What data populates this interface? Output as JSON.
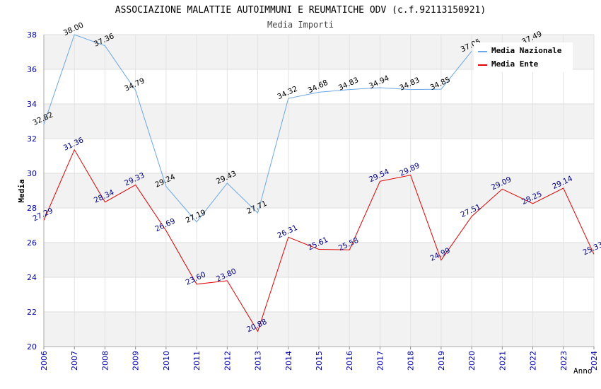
{
  "chart_data": {
    "type": "line",
    "title": "ASSOCIAZIONE MALATTIE AUTOIMMUNI E REUMATICHE ODV (c.f.92113150921)",
    "subtitle": "Media Importi",
    "xlabel": "Anno",
    "ylabel": "Media",
    "ylim": [
      20,
      38
    ],
    "yticks": [
      20,
      22,
      24,
      26,
      28,
      30,
      32,
      34,
      36,
      38
    ],
    "x": [
      2006,
      2007,
      2008,
      2009,
      2010,
      2011,
      2012,
      2013,
      2014,
      2015,
      2016,
      2017,
      2018,
      2019,
      2020,
      2021,
      2022,
      2023,
      2024
    ],
    "legend_position": "top-right",
    "grid": true,
    "series": [
      {
        "name": "Media Nazionale",
        "color": "#6aa7e6",
        "values": [
          32.82,
          38.0,
          37.36,
          34.79,
          29.24,
          27.19,
          29.43,
          27.71,
          34.32,
          34.68,
          34.83,
          34.94,
          34.83,
          34.85,
          37.05,
          null,
          37.49,
          null,
          null
        ],
        "labels": [
          "32.82",
          "38.00",
          "37.36",
          "34.79",
          "29.24",
          "27.19",
          "29.43",
          "27.71",
          "34.32",
          "34.68",
          "34.83",
          "34.94",
          "34.83",
          "34.85",
          "37.05",
          "",
          "37.49",
          "",
          ""
        ]
      },
      {
        "name": "Media Ente",
        "color": "#e00000",
        "values": [
          27.29,
          31.36,
          28.34,
          29.33,
          26.69,
          23.6,
          23.8,
          20.88,
          26.31,
          25.61,
          25.58,
          29.54,
          29.89,
          24.99,
          27.51,
          29.09,
          28.25,
          29.14,
          25.33
        ],
        "labels": [
          "27.29",
          "31.36",
          "28.34",
          "29.33",
          "26.69",
          "23.60",
          "23.80",
          "20.88",
          "26.31",
          "25.61",
          "25.58",
          "29.54",
          "29.89",
          "24.99",
          "27.51",
          "29.09",
          "28.25",
          "29.14",
          "25.33"
        ]
      }
    ]
  }
}
